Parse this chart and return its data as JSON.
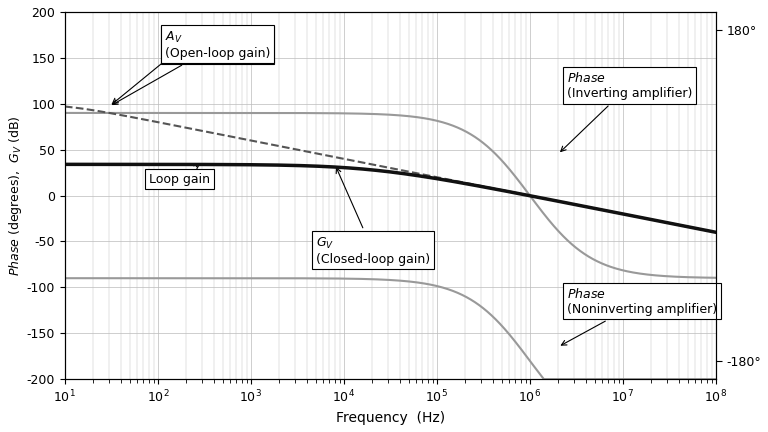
{
  "xlabel": "Frequency  (Hz)",
  "background_color": "#ffffff",
  "grid_color": "#bbbbbb",
  "curve_color_gray": "#999999",
  "curve_color_black": "#111111",
  "curve_color_dashed": "#555555",
  "xlim": [
    10,
    100000000.0
  ],
  "ylim": [
    -200,
    200
  ],
  "yticks_left": [
    -200,
    -150,
    -100,
    -50,
    0,
    50,
    100,
    150,
    200
  ],
  "DC_gain_dB": 100.0,
  "f_pole_oa": 10.0,
  "GV_flat_dB": 34.0,
  "f_cl": 100000.0,
  "f_gbp": 1000000.0,
  "phase_transition_f": 1000000.0,
  "phase_transition_steepness": 1.0
}
